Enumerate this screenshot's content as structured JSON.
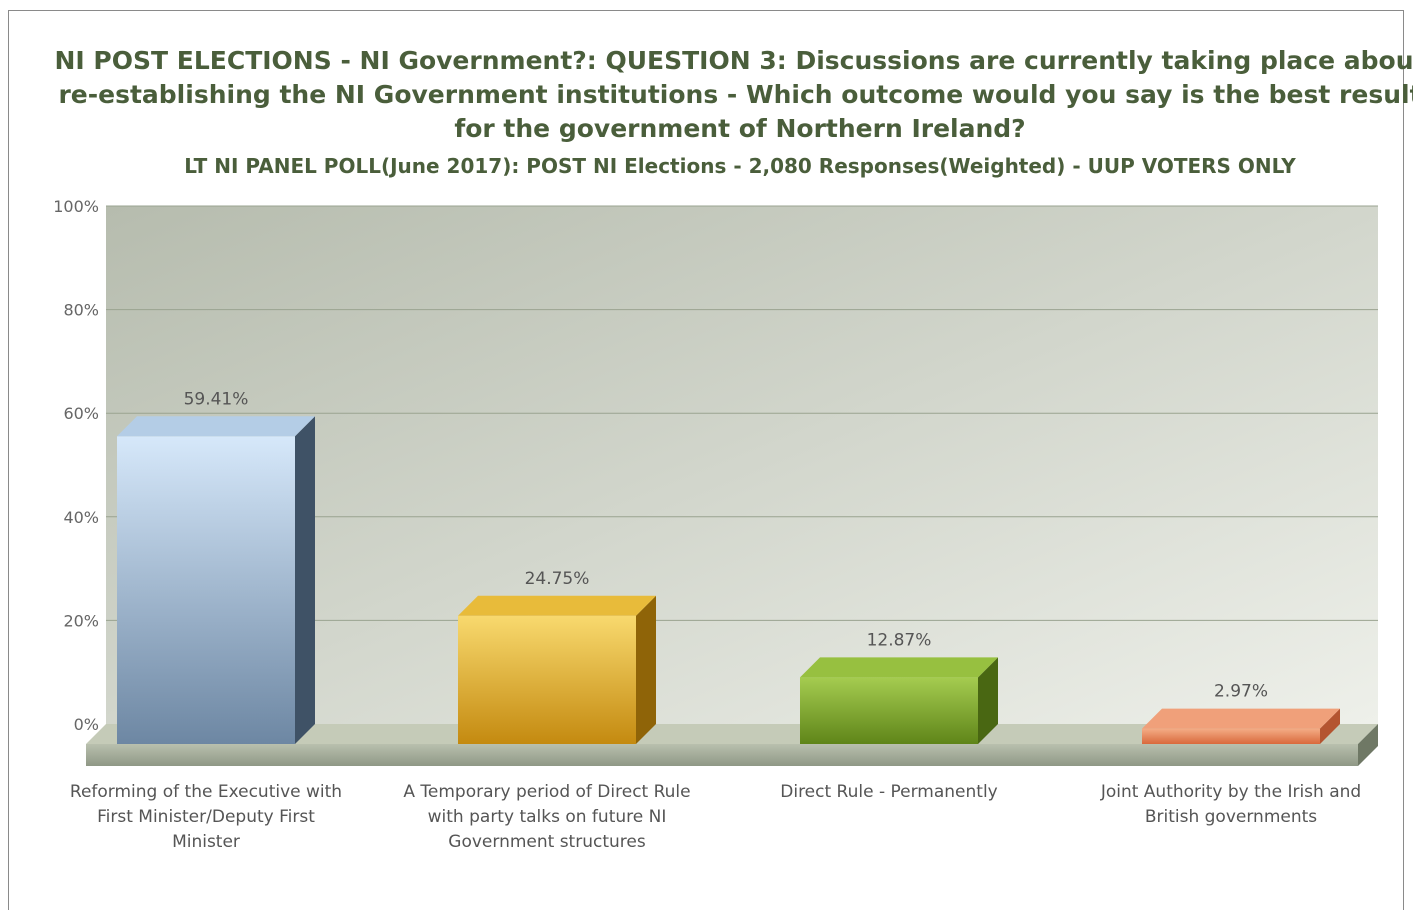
{
  "chart_data": {
    "type": "bar",
    "title": "NI POST ELECTIONS - NI Government?:   QUESTION 3: Discussions are currently taking place about re-establishing the NI Government institutions - Which outcome would you say is the best result for the government of Northern Ireland?",
    "subtitle": "LT NI PANEL POLL(June 2017): POST NI Elections - 2,080 Responses(Weighted) - UUP VOTERS ONLY",
    "categories": [
      "Reforming of the Executive with First Minister/Deputy First Minister",
      "A Temporary period of Direct Rule with party talks on future NI Government structures",
      "Direct Rule - Permanently",
      "Joint Authority by the Irish and British governments"
    ],
    "values": [
      59.41,
      24.75,
      12.87,
      2.97
    ],
    "data_labels": [
      "59.41%",
      "24.75%",
      "12.87%",
      "2.97%"
    ],
    "ylim": [
      0,
      100
    ],
    "yticks": [
      0,
      20,
      40,
      60,
      80,
      100
    ],
    "ytick_labels": [
      "0%",
      "20%",
      "40%",
      "60%",
      "80%",
      "100%"
    ],
    "xlabel": "",
    "ylabel": "",
    "grid": true,
    "style": "3d",
    "bar_colors": [
      "#7f9bb8",
      "#e0b035",
      "#7fa22c",
      "#e5855a"
    ],
    "plot_background": "#d2d6cc"
  }
}
